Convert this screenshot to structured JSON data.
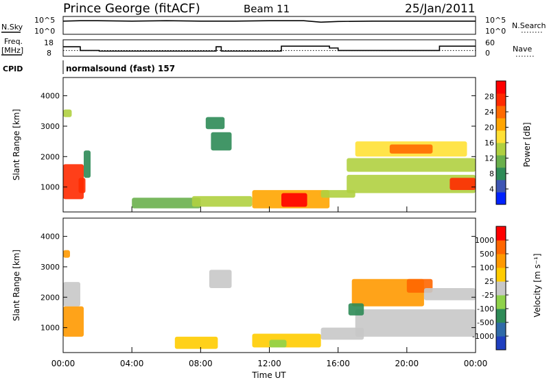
{
  "header": {
    "station": "Prince George (fitACF)",
    "beam": "Beam 11",
    "date": "25/Jan/2011"
  },
  "top_panels": {
    "nsky_label": "N.Sky",
    "nsky_ticks": [
      "10^5",
      "10^0"
    ],
    "nsearch_label": "N.Search",
    "nsearch_ticks": [
      "10^5",
      "10^0"
    ],
    "freq_label": "Freq.",
    "freq_unit": "[MHz]",
    "freq_ticks": [
      "18",
      "8"
    ],
    "nave_label": "Nave",
    "nave_ticks": [
      "60",
      "0"
    ],
    "cpid_label": "CPID",
    "cpid_text": "normalsound (fast) 157"
  },
  "axes": {
    "ylabel": "Slant Range [km]",
    "xlabel": "Time UT",
    "xticks": [
      "00:00",
      "04:00",
      "08:00",
      "12:00",
      "16:00",
      "20:00",
      "00:00"
    ],
    "yticks": [
      "1000",
      "2000",
      "3000",
      "4000"
    ]
  },
  "colorbars": {
    "power": {
      "label": "Power [dB]",
      "ticks": [
        "4",
        "8",
        "12",
        "16",
        "20",
        "24",
        "28"
      ],
      "colors": [
        "#0022ff",
        "#3d55b4",
        "#2e8b57",
        "#6ab04c",
        "#b0d040",
        "#ffe135",
        "#ffa500",
        "#ff6a00",
        "#ff2a00",
        "#ff0000"
      ]
    },
    "velocity": {
      "label": "Velocity [m s⁻¹]",
      "ticks": [
        "1000",
        "500",
        "100",
        "25",
        "-25",
        "-100",
        "-500",
        "-1000"
      ],
      "colors": [
        "#1f3fbf",
        "#2f6aa8",
        "#2e8b57",
        "#8fd24a",
        "#c8c8c8",
        "#ffcc00",
        "#ff9900",
        "#ff6600",
        "#ff0000"
      ]
    }
  },
  "chart_data": [
    {
      "type": "line",
      "title": "N.Sky / N.Search",
      "x_range_hours": [
        0,
        24
      ],
      "ylim_log10": [
        0,
        5
      ],
      "series": [
        {
          "name": "N.Sky",
          "x": [
            0,
            1,
            2,
            4,
            6,
            8,
            10,
            12,
            14,
            15,
            16,
            18,
            20,
            22,
            24
          ],
          "values": [
            3.7,
            3.8,
            3.8,
            3.7,
            3.8,
            3.7,
            3.7,
            3.8,
            3.8,
            3.4,
            3.6,
            3.7,
            3.7,
            3.7,
            3.7
          ]
        }
      ]
    },
    {
      "type": "line",
      "title": "Freq. / Nave",
      "x_range_hours": [
        0,
        24
      ],
      "freq_ylim_mhz": [
        8,
        18
      ],
      "nave_ylim": [
        0,
        60
      ],
      "series": [
        {
          "name": "Freq.",
          "x": [
            0,
            1.0,
            1.0,
            2.1,
            2.1,
            8.9,
            8.9,
            9.2,
            9.2,
            12.7,
            12.7,
            15.5,
            15.5,
            16.0,
            16.0,
            21.9,
            21.9,
            24
          ],
          "values": [
            14.0,
            14.0,
            11.0,
            11.0,
            10.5,
            10.5,
            14.0,
            14.0,
            10.5,
            10.5,
            14.5,
            14.5,
            13.0,
            13.0,
            11.0,
            11.0,
            14.5,
            14.5
          ]
        },
        {
          "name": "Nave",
          "x": [
            0,
            24
          ],
          "values": [
            20,
            20
          ]
        }
      ]
    },
    {
      "type": "heatmap",
      "title": "Power [dB]",
      "x_range_hours": [
        0,
        24
      ],
      "ylim_km": [
        180,
        4600
      ],
      "patches": [
        {
          "t0": 0.0,
          "t1": 1.2,
          "r0": 600,
          "r1": 1750,
          "value": 24
        },
        {
          "t0": 0.9,
          "t1": 1.3,
          "r0": 800,
          "r1": 1300,
          "value": 26
        },
        {
          "t0": 0.0,
          "t1": 0.5,
          "r0": 3300,
          "r1": 3550,
          "value": 12
        },
        {
          "t0": 1.2,
          "t1": 1.6,
          "r0": 1300,
          "r1": 2200,
          "value": 6
        },
        {
          "t0": 8.6,
          "t1": 9.8,
          "r0": 2200,
          "r1": 2800,
          "value": 8
        },
        {
          "t0": 8.3,
          "t1": 9.4,
          "r0": 2900,
          "r1": 3300,
          "value": 6
        },
        {
          "t0": 4.0,
          "t1": 8.0,
          "r0": 300,
          "r1": 650,
          "value": 10
        },
        {
          "t0": 7.5,
          "t1": 11.0,
          "r0": 350,
          "r1": 700,
          "value": 14
        },
        {
          "t0": 11.0,
          "t1": 15.5,
          "r0": 300,
          "r1": 900,
          "value": 18
        },
        {
          "t0": 12.7,
          "t1": 14.2,
          "r0": 350,
          "r1": 800,
          "value": 29
        },
        {
          "t0": 15.0,
          "t1": 17.0,
          "r0": 650,
          "r1": 900,
          "value": 12
        },
        {
          "t0": 16.5,
          "t1": 24.0,
          "r0": 800,
          "r1": 1400,
          "value": 14
        },
        {
          "t0": 16.5,
          "t1": 24.0,
          "r0": 1500,
          "r1": 1950,
          "value": 12
        },
        {
          "t0": 17.0,
          "t1": 23.5,
          "r0": 2000,
          "r1": 2500,
          "value": 16
        },
        {
          "t0": 19.0,
          "t1": 21.5,
          "r0": 2100,
          "r1": 2400,
          "value": 22
        },
        {
          "t0": 22.5,
          "t1": 24.0,
          "r0": 900,
          "r1": 1300,
          "value": 26
        }
      ]
    },
    {
      "type": "heatmap",
      "title": "Velocity [m s⁻¹]",
      "x_range_hours": [
        0,
        24
      ],
      "ylim_km": [
        180,
        4600
      ],
      "patches": [
        {
          "t0": 0.0,
          "t1": 1.2,
          "r0": 700,
          "r1": 1700,
          "value": -250
        },
        {
          "t0": 0.0,
          "t1": 0.4,
          "r0": 3300,
          "r1": 3550,
          "value": -300
        },
        {
          "t0": 0.0,
          "t1": 1.0,
          "r0": 1700,
          "r1": 2500,
          "value": 0
        },
        {
          "t0": 6.5,
          "t1": 9.0,
          "r0": 300,
          "r1": 700,
          "value": -80
        },
        {
          "t0": 8.5,
          "t1": 9.8,
          "r0": 2300,
          "r1": 2900,
          "value": 0
        },
        {
          "t0": 11.0,
          "t1": 15.0,
          "r0": 350,
          "r1": 800,
          "value": -60
        },
        {
          "t0": 12.0,
          "t1": 13.0,
          "r0": 350,
          "r1": 600,
          "value": 60
        },
        {
          "t0": 15.0,
          "t1": 17.5,
          "r0": 600,
          "r1": 1000,
          "value": 0
        },
        {
          "t0": 16.8,
          "t1": 21.0,
          "r0": 1700,
          "r1": 2600,
          "value": -300
        },
        {
          "t0": 20.0,
          "t1": 21.5,
          "r0": 2150,
          "r1": 2600,
          "value": -600
        },
        {
          "t0": 17.0,
          "t1": 24.0,
          "r0": 700,
          "r1": 1600,
          "value": 0
        },
        {
          "t0": 21.0,
          "t1": 24.0,
          "r0": 1900,
          "r1": 2300,
          "value": 0
        },
        {
          "t0": 16.6,
          "t1": 17.5,
          "r0": 1400,
          "r1": 1800,
          "value": 120
        }
      ]
    }
  ]
}
